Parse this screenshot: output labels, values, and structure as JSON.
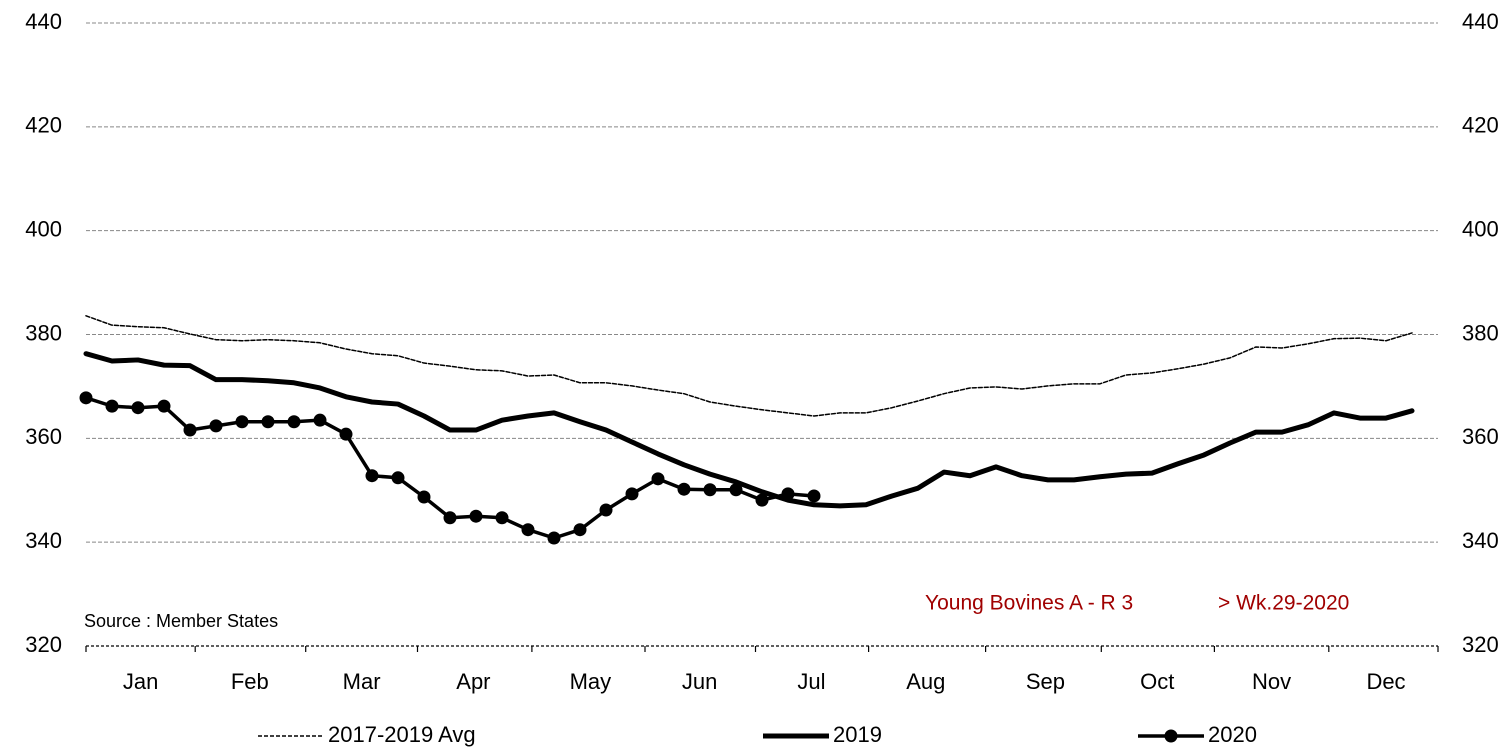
{
  "chart_data": {
    "type": "line",
    "source": "Source : Member States",
    "annotation": "Young Bovines A - R 3",
    "annotation_week": "> Wk.29-2020",
    "x": [
      1,
      2,
      3,
      4,
      5,
      6,
      7,
      8,
      9,
      10,
      11,
      12,
      13,
      14,
      15,
      16,
      17,
      18,
      19,
      20,
      21,
      22,
      23,
      24,
      25,
      26,
      27,
      28,
      29,
      30,
      31,
      32,
      33,
      34,
      35,
      36,
      37,
      38,
      39,
      40,
      41,
      42,
      43,
      44,
      45,
      46,
      47,
      48,
      49,
      50,
      51,
      52
    ],
    "xlim": [
      1,
      53
    ],
    "xticks": [
      {
        "value": 3.1,
        "label": "Jan"
      },
      {
        "value": 7.3,
        "label": "Feb"
      },
      {
        "value": 11.6,
        "label": "Mar"
      },
      {
        "value": 15.9,
        "label": "Apr"
      },
      {
        "value": 20.4,
        "label": "May"
      },
      {
        "value": 24.6,
        "label": "Jun"
      },
      {
        "value": 28.9,
        "label": "Jul"
      },
      {
        "value": 33.3,
        "label": "Aug"
      },
      {
        "value": 37.9,
        "label": "Sep"
      },
      {
        "value": 42.2,
        "label": "Oct"
      },
      {
        "value": 46.6,
        "label": "Nov"
      },
      {
        "value": 51.0,
        "label": "Dec"
      }
    ],
    "ylim": [
      320,
      440
    ],
    "yticks": [
      320,
      340,
      360,
      380,
      400,
      420,
      440
    ],
    "grid": true,
    "series": [
      {
        "name": "2017-2019 Avg",
        "color": "#000000",
        "style": "dashed",
        "values": [
          383.6,
          381.8,
          381.5,
          381.3,
          380.1,
          379.0,
          378.8,
          379.0,
          378.8,
          378.4,
          377.2,
          376.3,
          375.9,
          374.5,
          373.9,
          373.2,
          373.0,
          372.0,
          372.2,
          370.7,
          370.7,
          370.1,
          369.3,
          368.6,
          367.0,
          366.2,
          365.5,
          364.9,
          364.3,
          364.9,
          364.9,
          365.9,
          367.2,
          368.6,
          369.7,
          369.9,
          369.5,
          370.1,
          370.5,
          370.5,
          372.2,
          372.6,
          373.4,
          374.3,
          375.5,
          377.6,
          377.4,
          378.2,
          379.2,
          379.3,
          378.8,
          380.3
        ]
      },
      {
        "name": "2019",
        "color": "#000000",
        "style": "thick",
        "values": [
          376.3,
          374.9,
          375.1,
          374.1,
          374.0,
          371.3,
          371.3,
          371.1,
          370.7,
          369.7,
          368.0,
          367.0,
          366.6,
          364.3,
          361.6,
          361.6,
          363.5,
          364.3,
          364.9,
          363.2,
          361.6,
          359.3,
          357.0,
          354.9,
          353.1,
          351.6,
          349.7,
          348.1,
          347.2,
          347.0,
          347.2,
          348.9,
          350.4,
          353.5,
          352.8,
          354.5,
          352.8,
          352.0,
          352.0,
          352.6,
          353.1,
          353.3,
          355.1,
          356.8,
          359.1,
          361.2,
          361.2,
          362.6,
          364.9,
          363.9,
          363.9,
          365.3
        ]
      },
      {
        "name": "2020",
        "color": "#000000",
        "style": "markers",
        "values": [
          367.8,
          366.2,
          365.9,
          366.2,
          361.6,
          362.4,
          363.2,
          363.2,
          363.2,
          363.5,
          360.8,
          352.8,
          352.4,
          348.7,
          344.7,
          345.0,
          344.7,
          342.4,
          340.8,
          342.4,
          346.2,
          349.3,
          352.2,
          350.2,
          350.1,
          350.1,
          348.1,
          349.3,
          348.9,
          null,
          null,
          null,
          null,
          null,
          null,
          null,
          null,
          null,
          null,
          null,
          null,
          null,
          null,
          null,
          null,
          null,
          null,
          null,
          null,
          null,
          null,
          null
        ]
      }
    ]
  }
}
